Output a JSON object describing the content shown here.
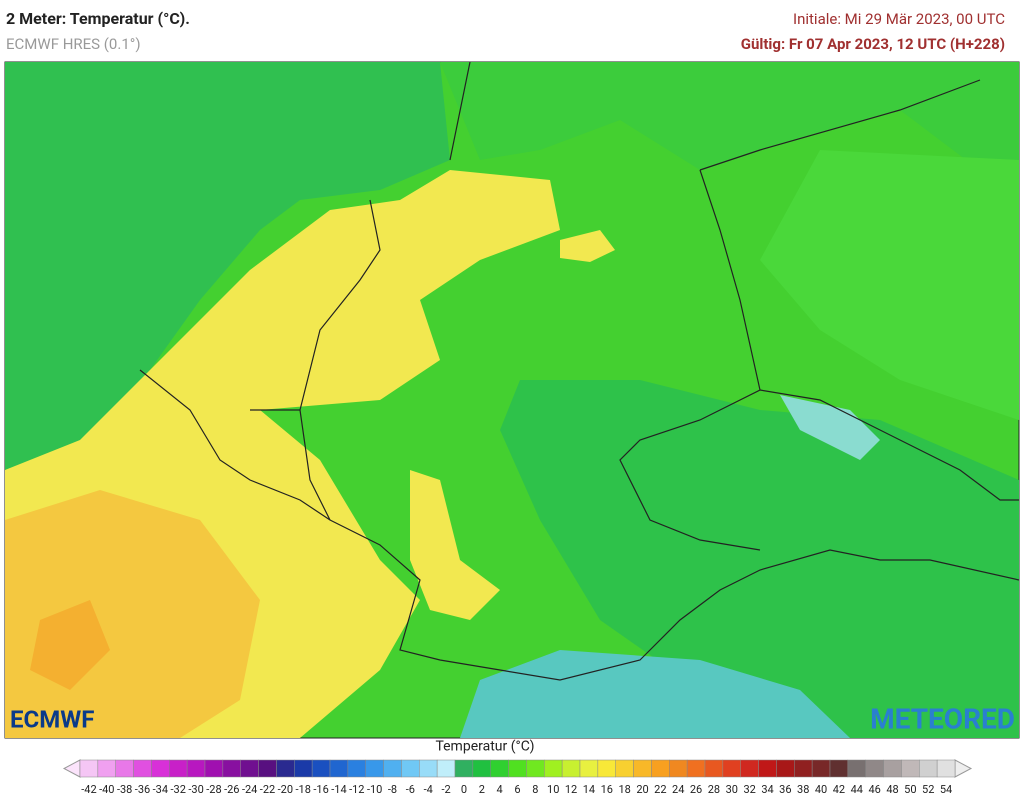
{
  "header": {
    "title": "2 Meter: Temperatur (°C).",
    "model": "ECMWF HRES (0.1°)",
    "init": "Initiale: Mi 29 Mär 2023, 00 UTC",
    "valid": "Gültig: Fr 07 Apr 2023, 12 UTC (H+228)"
  },
  "logos": {
    "left": "ECMWF",
    "right": "METEORED"
  },
  "colorbar": {
    "title": "Temperatur (°C)",
    "labels": [
      -42,
      -40,
      -38,
      -36,
      -34,
      -32,
      -30,
      -28,
      -26,
      -24,
      -22,
      -20,
      -18,
      -16,
      -14,
      -12,
      -10,
      -8,
      -6,
      -4,
      -2,
      0,
      2,
      4,
      6,
      8,
      10,
      12,
      14,
      16,
      18,
      20,
      22,
      24,
      26,
      28,
      30,
      32,
      34,
      36,
      38,
      40,
      42,
      44,
      46,
      48,
      50,
      52,
      54
    ],
    "colors": [
      "#f5c6f5",
      "#f0a0f0",
      "#e878e8",
      "#e050e0",
      "#d830d8",
      "#c820c8",
      "#b818c0",
      "#a010b0",
      "#8810a0",
      "#701090",
      "#581080",
      "#2a2a90",
      "#1a3aa8",
      "#1a50c0",
      "#2066d0",
      "#2a80e0",
      "#3898ea",
      "#50b0f0",
      "#70c8f5",
      "#98dcf8",
      "#c0eefa",
      "#30b060",
      "#20c040",
      "#30d030",
      "#50e020",
      "#70e820",
      "#a0f020",
      "#c8f030",
      "#e8f040",
      "#f8e838",
      "#f8d030",
      "#f8b828",
      "#f8a020",
      "#f08820",
      "#f07020",
      "#e85820",
      "#e04020",
      "#d02820",
      "#c01818",
      "#a81818",
      "#902020",
      "#782828",
      "#603030",
      "#787070",
      "#908888",
      "#a8a0a0",
      "#c0b8b8",
      "#d0d0d0",
      "#e0e0e0"
    ]
  }
}
